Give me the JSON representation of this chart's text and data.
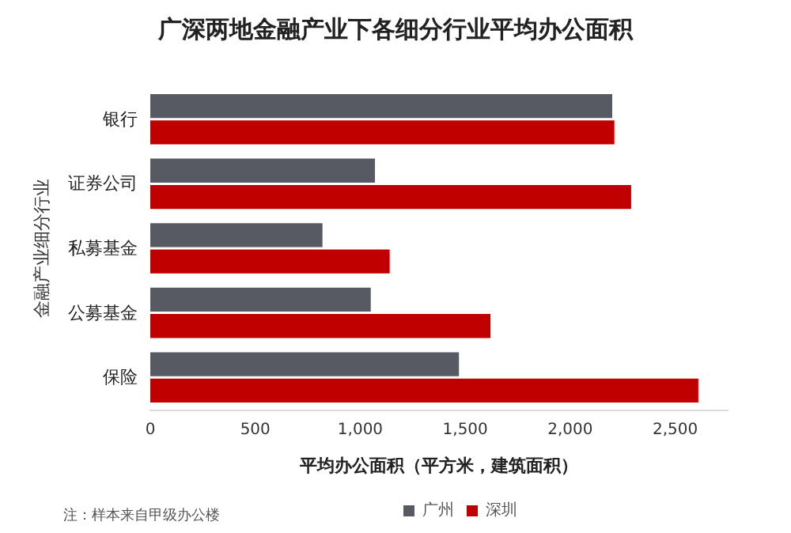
{
  "chart_data": {
    "type": "bar",
    "orientation": "horizontal",
    "title": "广深两地金融产业下各细分行业平均办公面积",
    "xlabel": "平均办公面积（平方米，建筑面积）",
    "ylabel": "金融产业细分行业",
    "categories": [
      "银行",
      "证券公司",
      "私募基金",
      "公募基金",
      "保险"
    ],
    "series": [
      {
        "name": "广州",
        "color": "#575a63",
        "values": [
          2200,
          1070,
          820,
          1050,
          1470
        ]
      },
      {
        "name": "深圳",
        "color": "#c00000",
        "values": [
          2210,
          2290,
          1140,
          1620,
          2610
        ]
      }
    ],
    "xlim": [
      0,
      2750
    ],
    "xticks": [
      0,
      {
        "value": 500,
        "label": "500"
      },
      {
        "value": 1000,
        "label": "1,000"
      },
      {
        "value": 1500,
        "label": "1,500"
      },
      {
        "value": 2000,
        "label": "2,000"
      },
      {
        "value": 2500,
        "label": "2,500"
      }
    ],
    "grid": false,
    "legend": "bottom",
    "annotations": [
      "注：样本来自甲级办公楼"
    ]
  }
}
